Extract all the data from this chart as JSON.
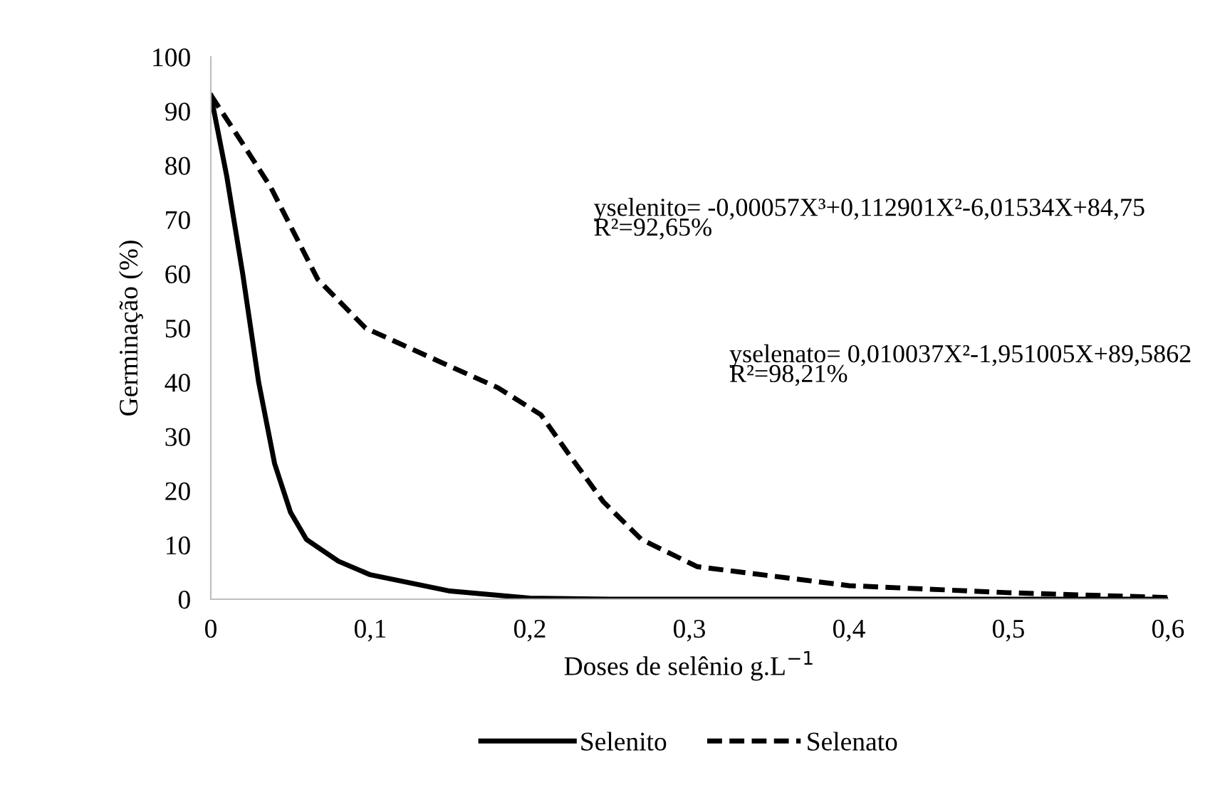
{
  "chart_data": {
    "type": "line",
    "xlabel": "Doses de selênio g.L$^{−1}$",
    "ylabel": "Germinação (%)",
    "xlim": [
      0,
      0.6
    ],
    "xticks": [
      {
        "value": 0,
        "label": "0"
      },
      {
        "value": 0.1,
        "label": "0,1"
      },
      {
        "value": 0.2,
        "label": "0,2"
      },
      {
        "value": 0.3,
        "label": "0,3"
      },
      {
        "value": 0.4,
        "label": "0,4"
      },
      {
        "value": 0.5,
        "label": "0,5"
      },
      {
        "value": 0.6,
        "label": "0,6"
      }
    ],
    "ylim": [
      0,
      100
    ],
    "yticks": [
      0,
      10,
      20,
      30,
      40,
      50,
      60,
      70,
      80,
      90,
      100
    ],
    "grid": false,
    "legend": "bottom",
    "marker": "none",
    "series": [
      {
        "name": "Selenito",
        "color": "#000000",
        "line_style": "solid",
        "x": [
          0,
          0.01,
          0.02,
          0.03,
          0.04,
          0.05,
          0.06,
          0.08,
          0.1,
          0.15,
          0.2,
          0.25,
          0.3,
          0.4,
          0.5,
          0.6
        ],
        "values": [
          93,
          78,
          60,
          40,
          25,
          16,
          11,
          7,
          4.5,
          1.5,
          0.2,
          0,
          0,
          0,
          0,
          0
        ]
      },
      {
        "name": "Selenato",
        "color": "#000000",
        "line_style": "dashed",
        "x": [
          0,
          0.02,
          0.0375,
          0.067,
          0.097,
          0.142,
          0.18,
          0.207,
          0.225,
          0.246,
          0.27,
          0.305,
          0.4,
          0.5,
          0.6
        ],
        "values": [
          93,
          84,
          76,
          59,
          50,
          44,
          39,
          34,
          26.5,
          18,
          11,
          6,
          2.5,
          1.2,
          0.3
        ]
      }
    ],
    "annotations": [
      "yselenito= -0,00057X³+0,112901X²-6,01534X+84,75\nR²=92,65%",
      "yselenato= 0,010037X²-1,951005X+89,5862\nR²=98,21%"
    ]
  }
}
